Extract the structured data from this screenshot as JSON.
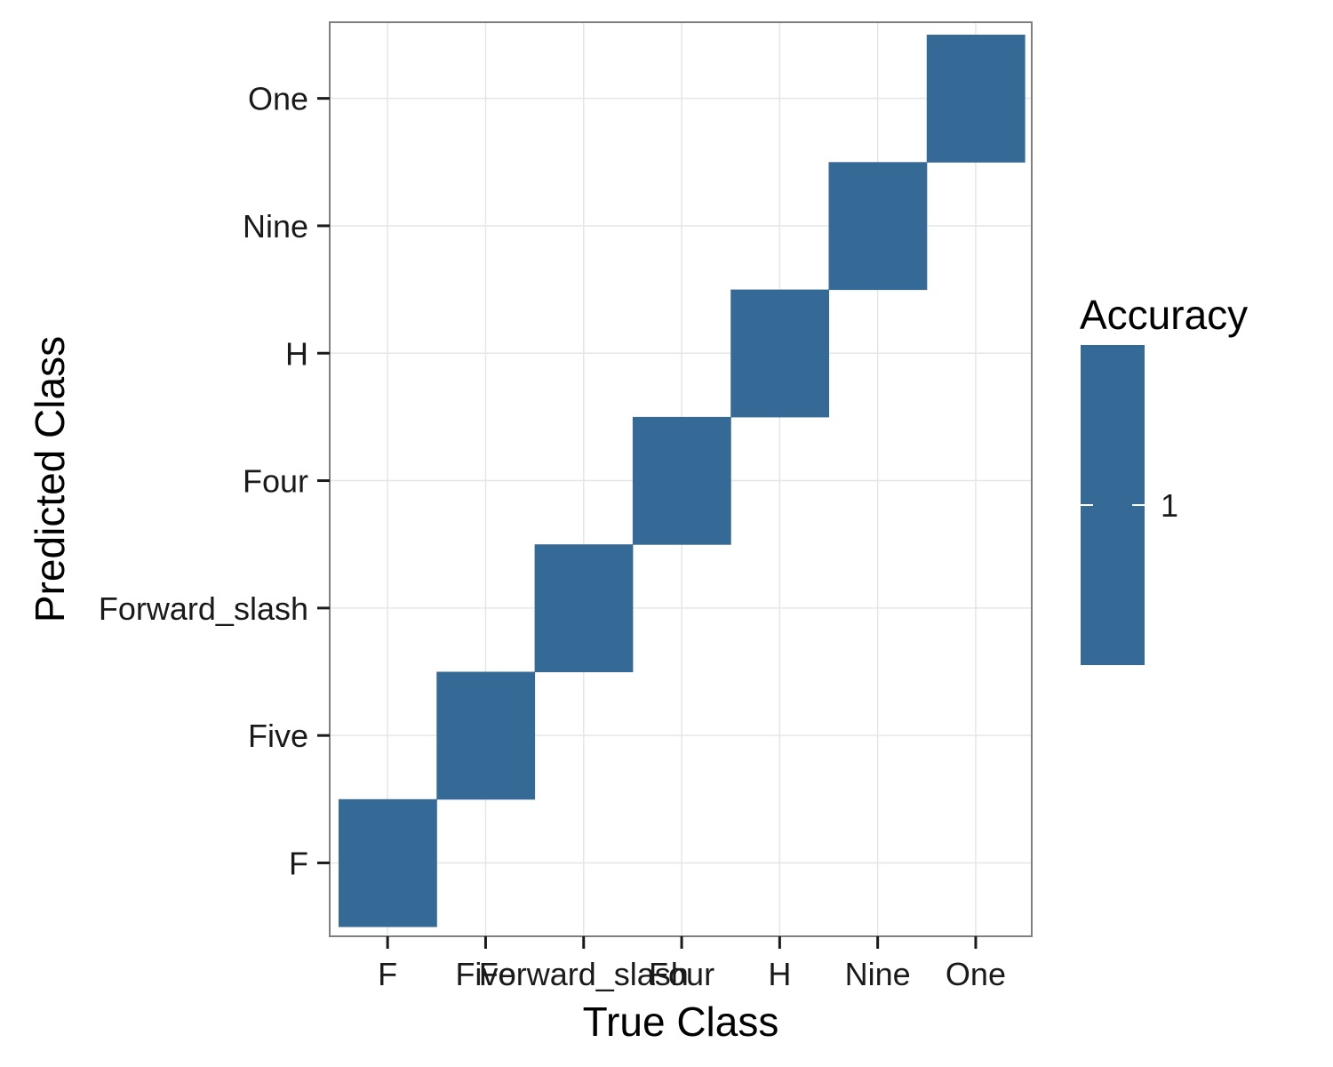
{
  "chart_data": {
    "type": "heatmap",
    "x_categories": [
      "F",
      "Five",
      "Forward_slash",
      "Four",
      "H",
      "Nine",
      "One"
    ],
    "y_categories": [
      "F",
      "Five",
      "Forward_slash",
      "Four",
      "H",
      "Nine",
      "One"
    ],
    "cells": [
      {
        "x": "F",
        "y": "F",
        "value": 1
      },
      {
        "x": "Five",
        "y": "Five",
        "value": 1
      },
      {
        "x": "Forward_slash",
        "y": "Forward_slash",
        "value": 1
      },
      {
        "x": "Four",
        "y": "Four",
        "value": 1
      },
      {
        "x": "H",
        "y": "H",
        "value": 1
      },
      {
        "x": "Nine",
        "y": "Nine",
        "value": 1
      },
      {
        "x": "One",
        "y": "One",
        "value": 1
      }
    ],
    "xlabel": "True Class",
    "ylabel": "Predicted Class",
    "legend": {
      "title": "Accuracy",
      "ticks": [
        {
          "value": 1,
          "label": "1"
        }
      ],
      "placement": "right"
    },
    "fill_color": "#356A96",
    "grid": true
  }
}
